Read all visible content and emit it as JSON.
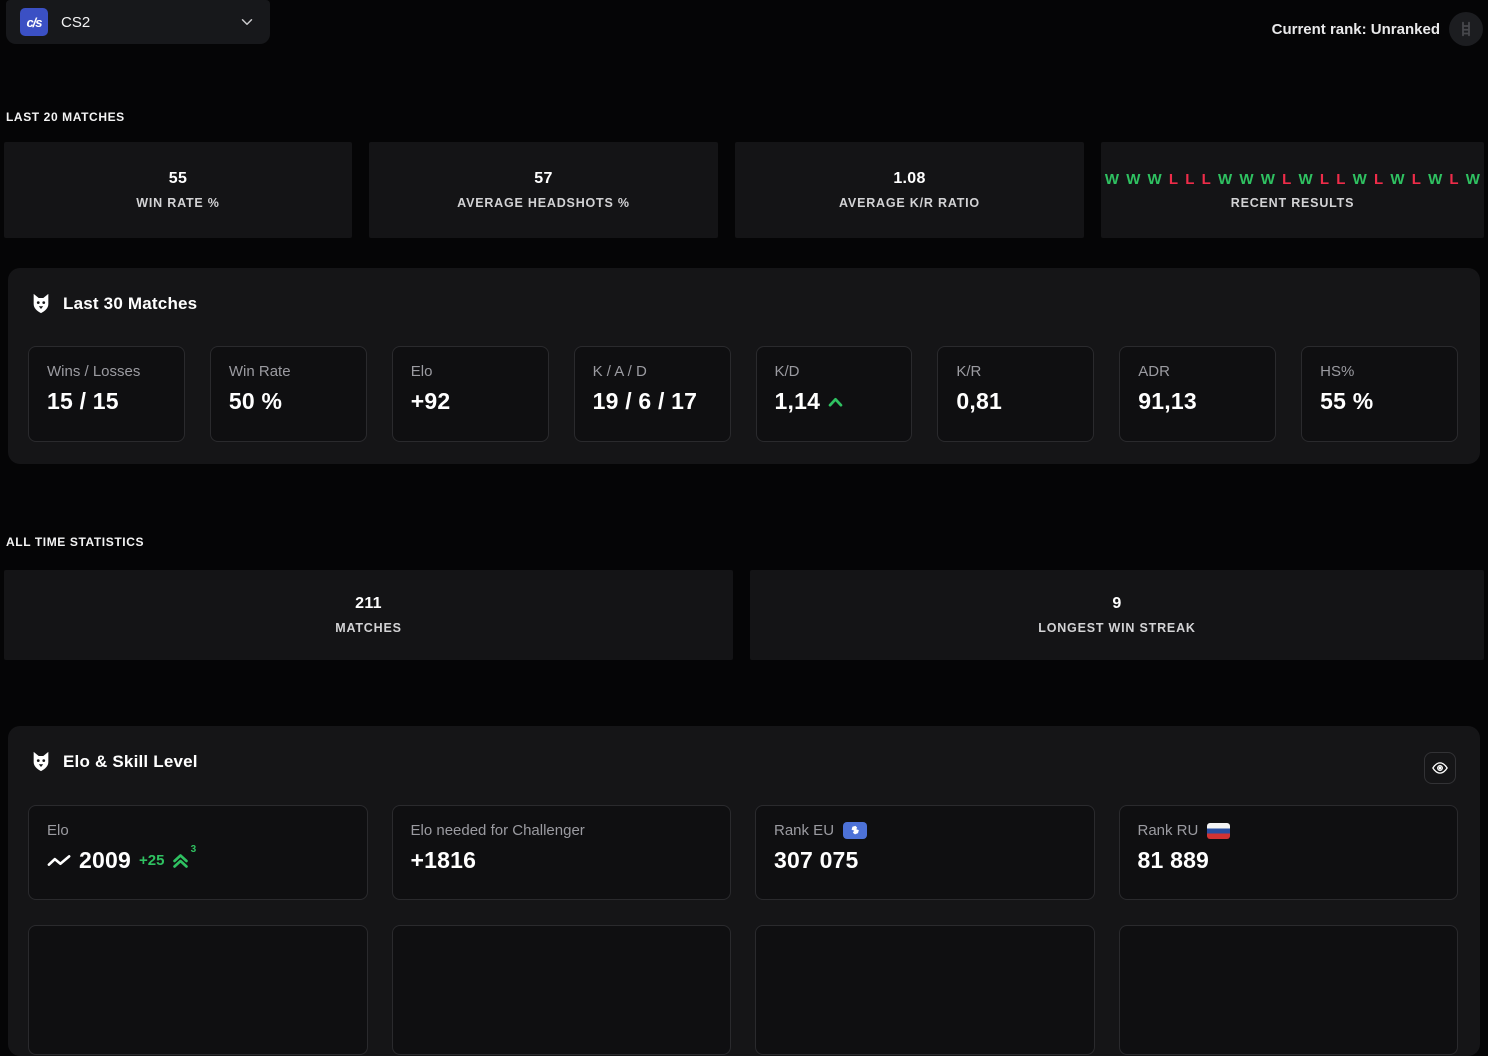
{
  "header": {
    "game_selector": {
      "logo_text": "c/s",
      "label": "CS2"
    },
    "current_rank": "Current rank: Unranked"
  },
  "last20": {
    "section_title": "LAST 20 MATCHES",
    "cards": [
      {
        "value": "55",
        "label": "WIN RATE %"
      },
      {
        "value": "57",
        "label": "AVERAGE HEADSHOTS %"
      },
      {
        "value": "1.08",
        "label": "AVERAGE K/R RATIO"
      }
    ],
    "recent_results": {
      "label": "RECENT RESULTS",
      "sequence": [
        "W",
        "W",
        "W",
        "L",
        "L",
        "L",
        "W",
        "W",
        "W",
        "L",
        "W",
        "L",
        "L",
        "W",
        "L",
        "W",
        "L",
        "W",
        "L",
        "W"
      ]
    }
  },
  "last30": {
    "title": "Last 30 Matches",
    "tiles": [
      {
        "label": "Wins / Losses",
        "value": "15 / 15"
      },
      {
        "label": "Win Rate",
        "value": "50 %"
      },
      {
        "label": "Elo",
        "value": "+92"
      },
      {
        "label": "K / A / D",
        "value": "19 / 6 / 17"
      },
      {
        "label": "K/D",
        "value": "1,14",
        "trend": "up"
      },
      {
        "label": "K/R",
        "value": "0,81"
      },
      {
        "label": "ADR",
        "value": "91,13"
      },
      {
        "label": "HS%",
        "value": "55 %"
      }
    ]
  },
  "alltime": {
    "section_title": "ALL TIME STATISTICS",
    "cards": [
      {
        "value": "211",
        "label": "MATCHES"
      },
      {
        "value": "9",
        "label": "LONGEST WIN STREAK"
      }
    ]
  },
  "elo_skill": {
    "title": "Elo & Skill Level",
    "tiles": [
      {
        "label": "Elo",
        "value": "2009",
        "delta": "+25",
        "streak": "3"
      },
      {
        "label": "Elo needed for Challenger",
        "value": "+1816"
      },
      {
        "label": "Rank EU",
        "value": "307 075",
        "badge": "europe-badge"
      },
      {
        "label": "Rank RU",
        "value": "81 889",
        "badge": "russia-flag"
      }
    ]
  },
  "icons": {
    "game_logo": "cs2-logo",
    "dropdown": "chevron-down-icon",
    "rank": "ladder-icon",
    "panel": "wolf-icon",
    "elo_sparkline": "activity-icon",
    "elo_streak": "double-chevron-up-icon",
    "kd_trend": "chevron-up-icon",
    "visibility": "eye-icon"
  },
  "colors": {
    "win_green": "#2fc161",
    "loss_red": "#ee2c49",
    "badge_blue": "#4d72d8",
    "logo_blue": "#3b50c4",
    "page_bg": "#050506",
    "card_bg": "#141416",
    "panel_bg": "#151517"
  }
}
